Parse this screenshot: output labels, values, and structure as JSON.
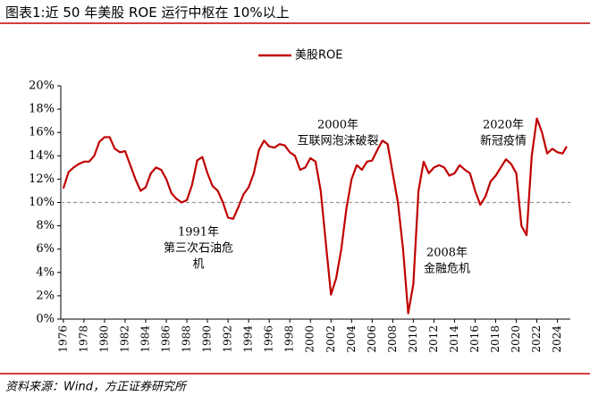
{
  "chart_data": {
    "type": "line",
    "title": "图表1:近 50 年美股 ROE 运行中枢在 10%以上",
    "source": "资料来源：Wind，方正证券研究所",
    "x": [
      1976,
      1976.5,
      1977,
      1977.5,
      1978,
      1978.5,
      1979,
      1979.5,
      1980,
      1980.5,
      1981,
      1981.5,
      1982,
      1982.5,
      1983,
      1983.5,
      1984,
      1984.5,
      1985,
      1985.5,
      1986,
      1986.5,
      1987,
      1987.5,
      1988,
      1988.5,
      1989,
      1989.5,
      1990,
      1990.5,
      1991,
      1991.5,
      1992,
      1992.5,
      1993,
      1993.5,
      1994,
      1994.5,
      1995,
      1995.5,
      1996,
      1996.5,
      1997,
      1997.5,
      1998,
      1998.5,
      1999,
      1999.5,
      2000,
      2000.5,
      2001,
      2001.5,
      2002,
      2002.5,
      2003,
      2003.5,
      2004,
      2004.5,
      2005,
      2005.5,
      2006,
      2006.5,
      2007,
      2007.5,
      2008,
      2008.5,
      2009,
      2009.5,
      2010,
      2010.5,
      2011,
      2011.5,
      2012,
      2012.5,
      2013,
      2013.5,
      2014,
      2014.5,
      2015,
      2015.5,
      2016,
      2016.5,
      2017,
      2017.5,
      2018,
      2018.5,
      2019,
      2019.5,
      2020,
      2020.5,
      2021,
      2021.5,
      2022,
      2022.5,
      2023,
      2023.5,
      2024,
      2024.5,
      2024.9
    ],
    "series": [
      {
        "name": "美股ROE",
        "color": "#c00000",
        "values": [
          11.2,
          12.6,
          13.0,
          13.3,
          13.5,
          13.5,
          14.0,
          15.2,
          15.6,
          15.6,
          14.6,
          14.3,
          14.4,
          13.2,
          12.0,
          11.0,
          11.3,
          12.5,
          13.0,
          12.8,
          12.0,
          10.8,
          10.3,
          10.0,
          10.2,
          11.5,
          13.6,
          13.9,
          12.5,
          11.4,
          11.0,
          10.0,
          8.7,
          8.6,
          9.6,
          10.7,
          11.3,
          12.5,
          14.5,
          15.3,
          14.8,
          14.7,
          15.0,
          14.9,
          14.3,
          14.0,
          12.8,
          13.0,
          13.8,
          13.5,
          11.0,
          6.5,
          2.1,
          3.5,
          6.0,
          9.5,
          12.0,
          13.2,
          12.8,
          13.5,
          13.6,
          14.5,
          15.3,
          15.0,
          12.5,
          10.0,
          6.0,
          0.5,
          3.0,
          11.0,
          13.5,
          12.5,
          13.0,
          13.2,
          13.0,
          12.3,
          12.5,
          13.2,
          12.8,
          12.5,
          11.0,
          9.8,
          10.5,
          11.8,
          12.3,
          13.0,
          13.7,
          13.3,
          12.5,
          8.0,
          7.2,
          14.0,
          17.2,
          16.0,
          14.2,
          14.6,
          14.3,
          14.2,
          14.8
        ]
      }
    ],
    "reference_line": {
      "value": 10,
      "color": "#999999"
    },
    "annotations": [
      {
        "lines": [
          "2000年",
          "互联网泡沫破裂"
        ]
      },
      {
        "lines": [
          "1991年",
          "第三次石油危",
          "机"
        ]
      },
      {
        "lines": [
          "2008年",
          "金融危机"
        ]
      },
      {
        "lines": [
          "2020年",
          "新冠疫情"
        ]
      }
    ],
    "xlim": [
      1975.75,
      2025.25
    ],
    "xticks": [
      1976,
      1978,
      1980,
      1982,
      1984,
      1986,
      1988,
      1990,
      1992,
      1994,
      1996,
      1998,
      2000,
      2002,
      2004,
      2006,
      2008,
      2010,
      2012,
      2014,
      2016,
      2018,
      2020,
      2022,
      2024
    ],
    "ylim": [
      0,
      20
    ],
    "yticks": [
      {
        "value": 0,
        "label": "0%"
      },
      {
        "value": 2,
        "label": "2%"
      },
      {
        "value": 4,
        "label": "4%"
      },
      {
        "value": 6,
        "label": "6%"
      },
      {
        "value": 8,
        "label": "8%"
      },
      {
        "value": 10,
        "label": "10%"
      },
      {
        "value": 12,
        "label": "12%"
      },
      {
        "value": 14,
        "label": "14%"
      },
      {
        "value": 16,
        "label": "16%"
      },
      {
        "value": 18,
        "label": "18%"
      },
      {
        "value": 20,
        "label": "20%"
      }
    ],
    "legend": "top"
  }
}
